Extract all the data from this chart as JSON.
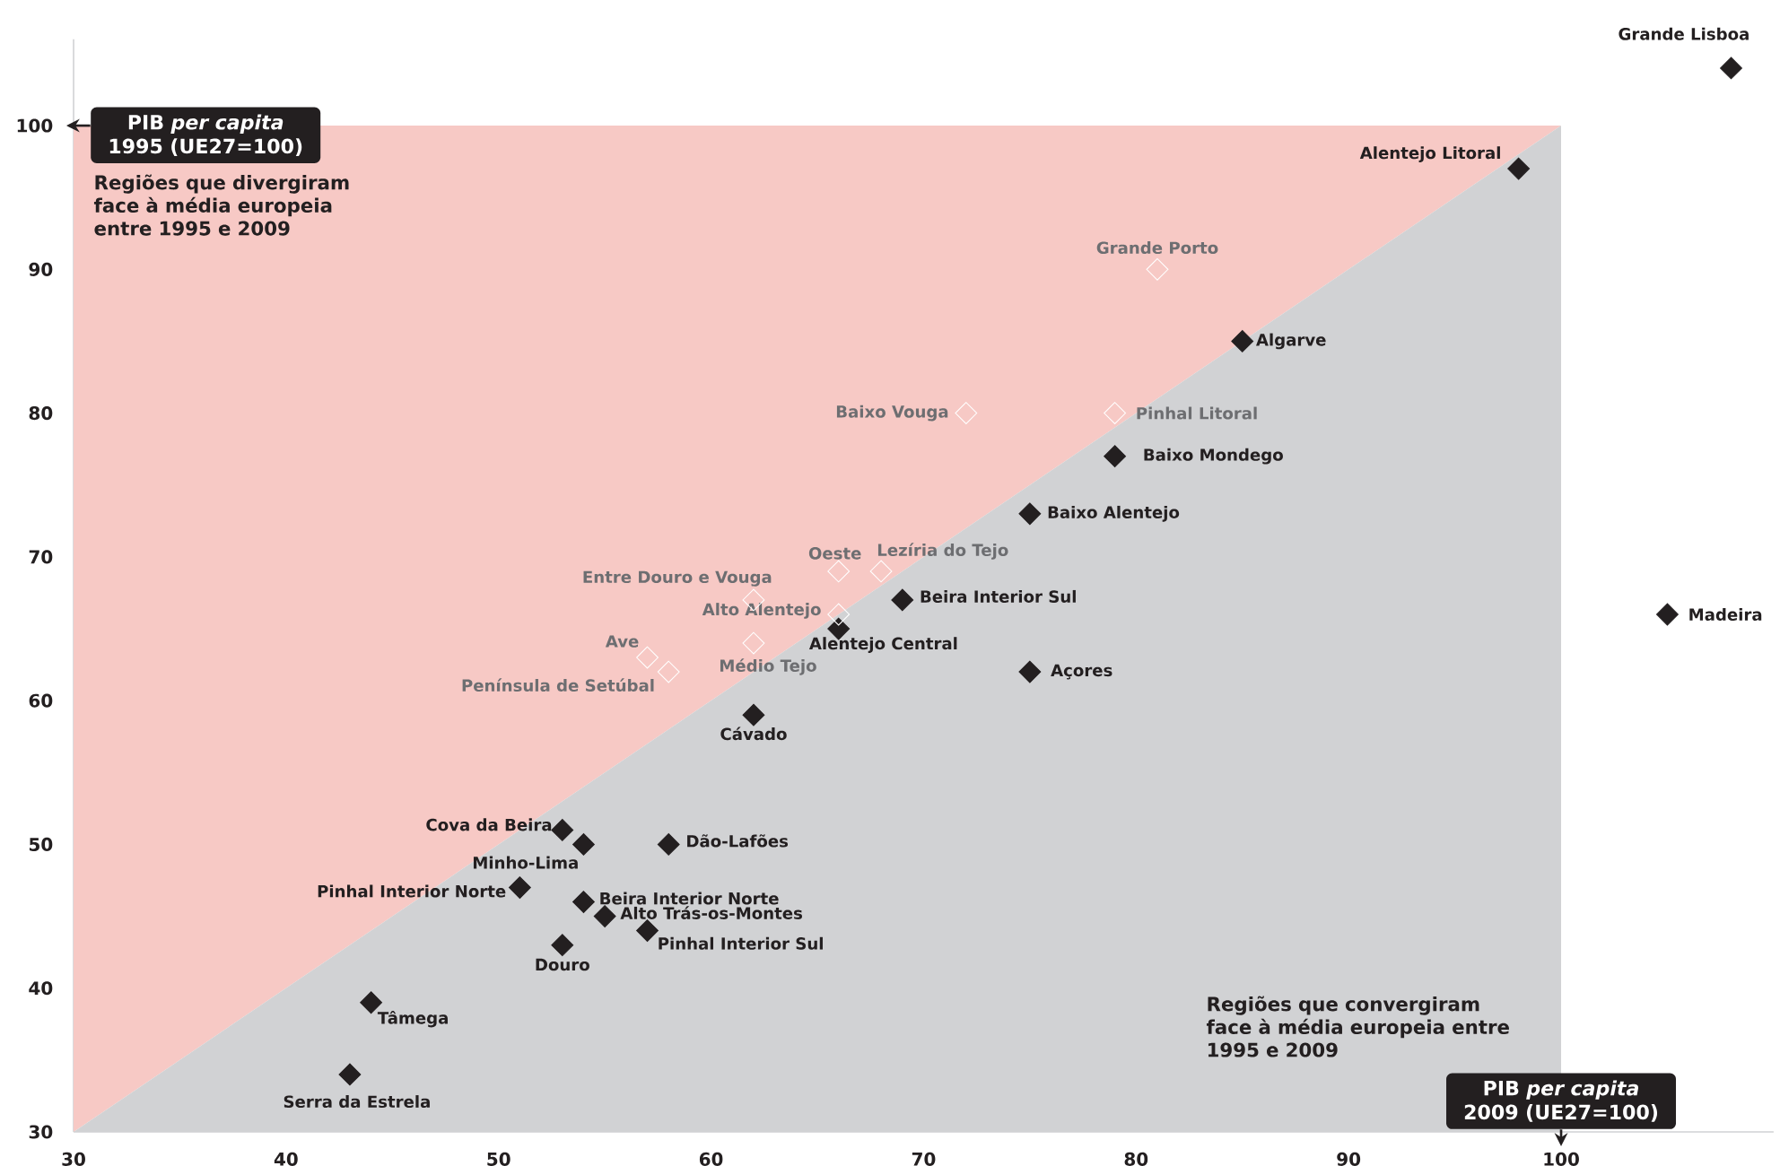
{
  "chart_data": {
    "type": "scatter",
    "xlabel": "PIB *per capita* 2009 (UE27=100)",
    "ylabel": "PIB *per capita* 1995 (UE27=100)",
    "xlim": [
      30,
      110
    ],
    "ylim": [
      30,
      106
    ],
    "xticks": [
      30,
      40,
      50,
      60,
      70,
      80,
      90,
      100
    ],
    "yticks": [
      30,
      40,
      50,
      60,
      70,
      80,
      90,
      100
    ],
    "marker": "diamond",
    "series": [
      {
        "color": "#231f20",
        "x": [
          108,
          98,
          85,
          79,
          75,
          69,
          66,
          62,
          75,
          105,
          53,
          54,
          58,
          51,
          54,
          55,
          57,
          53,
          44,
          43
        ],
        "values": [
          104,
          97,
          85,
          77,
          73,
          67,
          65,
          59,
          62,
          66,
          51,
          50,
          50,
          47,
          46,
          45,
          44,
          43,
          39,
          34
        ]
      },
      {
        "color": "#ffffff",
        "x": [
          81,
          79,
          72,
          66,
          68,
          62,
          66,
          62,
          57,
          58
        ],
        "values": [
          90,
          80,
          80,
          69,
          69,
          67,
          66,
          64,
          63,
          62
        ]
      }
    ],
    "annotations": [
      "Regiões que divergiram face à média europeia entre 1995 e 2009",
      "Regiões que convergiram face à média europeia entre 1995 e 2009",
      {
        "text": "Grande Lisboa",
        "x": 108,
        "y": 104
      },
      {
        "text": "Alentejo Litoral",
        "x": 98,
        "y": 97
      },
      {
        "text": "Algarve",
        "x": 85,
        "y": 85
      },
      {
        "text": "Baixo Mondego",
        "x": 79,
        "y": 77
      },
      {
        "text": "Baixo Alentejo",
        "x": 75,
        "y": 73
      },
      {
        "text": "Beira Interior Sul",
        "x": 69,
        "y": 67
      },
      {
        "text": "Alentejo Central",
        "x": 66,
        "y": 65
      },
      {
        "text": "Cávado",
        "x": 62,
        "y": 59
      },
      {
        "text": "Açores",
        "x": 75,
        "y": 62
      },
      {
        "text": "Madeira",
        "x": 105,
        "y": 66
      },
      {
        "text": "Cova da Beira",
        "x": 53,
        "y": 51
      },
      {
        "text": "Minho-Lima",
        "x": 54,
        "y": 50
      },
      {
        "text": "Dão-Lafões",
        "x": 58,
        "y": 50
      },
      {
        "text": "Pinhal Interior Norte",
        "x": 51,
        "y": 47
      },
      {
        "text": "Beira Interior Norte",
        "x": 54,
        "y": 46
      },
      {
        "text": "Alto Trás-os-Montes",
        "x": 55,
        "y": 45
      },
      {
        "text": "Pinhal Interior Sul",
        "x": 57,
        "y": 44
      },
      {
        "text": "Douro",
        "x": 53,
        "y": 43
      },
      {
        "text": "Tâmega",
        "x": 44,
        "y": 39
      },
      {
        "text": "Serra da Estrela",
        "x": 43,
        "y": 34
      },
      {
        "text": "Grande Porto",
        "x": 81,
        "y": 90
      },
      {
        "text": "Pinhal Litoral",
        "x": 79,
        "y": 80
      },
      {
        "text": "Baixo Vouga",
        "x": 72,
        "y": 80
      },
      {
        "text": "Oeste",
        "x": 66,
        "y": 69
      },
      {
        "text": "Lezíria do Tejo",
        "x": 68,
        "y": 69
      },
      {
        "text": "Entre Douro e Vouga",
        "x": 62,
        "y": 67
      },
      {
        "text": "Alto Alentejo",
        "x": 66,
        "y": 66
      },
      {
        "text": "Médio Tejo",
        "x": 62,
        "y": 64
      },
      {
        "text": "Ave",
        "x": 57,
        "y": 63
      },
      {
        "text": "Península de Setúbal",
        "x": 58,
        "y": 62
      }
    ]
  }
}
